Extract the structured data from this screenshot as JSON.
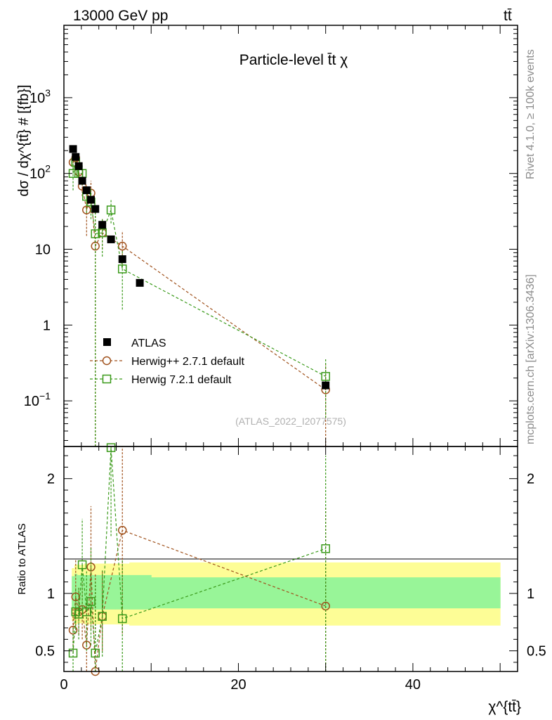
{
  "header": {
    "energy_label": "13000 GeV pp",
    "process_label": "tt̄"
  },
  "side_labels": {
    "rivet": "Rivet 4.1.0, ≥ 100k events",
    "mcplots": "mcplots.cern.ch [arXiv:1306.3436]"
  },
  "chart_data": [
    {
      "type": "scatter",
      "title": "Particle-level t̄t χ",
      "ylabel": "dσ / dχ^{tt̄} # [{fb}]",
      "yscale": "log",
      "ylim": [
        0.025,
        9000
      ],
      "xlim": [
        0,
        52
      ],
      "y_ticks": [
        {
          "value": 1000,
          "label": "10",
          "sup": "3"
        },
        {
          "value": 100,
          "label": "10",
          "sup": "2"
        },
        {
          "value": 10,
          "label": "10",
          "sup": ""
        },
        {
          "value": 1,
          "label": "1",
          "sup": ""
        },
        {
          "value": 0.1,
          "label": "10",
          "sup": "−1"
        }
      ],
      "watermark": "(ATLAS_2022_I2077575)",
      "legend": [
        {
          "label": "ATLAS",
          "color": "#000000",
          "marker": "square-filled"
        },
        {
          "label": "Herwig++ 2.7.1 default",
          "color": "#a0521d",
          "marker": "circle-open"
        },
        {
          "label": "Herwig 7.2.1 default",
          "color": "#3a9a1a",
          "marker": "square-open"
        }
      ],
      "series": [
        {
          "name": "ATLAS",
          "x": [
            1.05,
            1.35,
            1.7,
            2.1,
            2.6,
            3.1,
            3.6,
            4.4,
            5.4,
            6.7,
            8.7,
            30
          ],
          "y": [
            210,
            165,
            125,
            80,
            60,
            45,
            34,
            21,
            13.5,
            7.4,
            3.6,
            0.16
          ]
        },
        {
          "name": "Herwig++ 2.7.1 default",
          "x": [
            1.05,
            1.35,
            1.7,
            2.1,
            2.6,
            3.1,
            3.6,
            4.4,
            6.7,
            30
          ],
          "y": [
            140,
            160,
            105,
            68,
            33,
            55,
            11,
            16.5,
            11,
            0.14
          ],
          "err": [
            [
              110,
              180
            ],
            [
              125,
              200
            ],
            [
              80,
              130
            ],
            [
              50,
              88
            ],
            [
              15,
              55
            ],
            [
              30,
              80
            ],
            [
              0.001,
              40
            ],
            [
              10,
              25
            ],
            [
              6,
              17.5
            ],
            [
              0.001,
              0.3
            ]
          ]
        },
        {
          "name": "Herwig 7.2.1 default",
          "x": [
            1.05,
            1.35,
            1.7,
            2.1,
            2.6,
            3.1,
            3.6,
            4.4,
            5.4,
            6.7,
            30
          ],
          "y": [
            100,
            140,
            100,
            100,
            50,
            42,
            16,
            16.5,
            33,
            5.5,
            0.21
          ],
          "err": [
            [
              60,
              145
            ],
            [
              110,
              175
            ],
            [
              75,
              130
            ],
            [
              70,
              130
            ],
            [
              30,
              70
            ],
            [
              25,
              62
            ],
            [
              0.001,
              35
            ],
            [
              8,
              25
            ],
            [
              22,
              45
            ],
            [
              1.6,
              9.5
            ],
            [
              0.06,
              0.36
            ]
          ]
        }
      ]
    },
    {
      "type": "scatter",
      "ylabel": "Ratio to ATLAS",
      "xlabel": "χ^{tt̄}",
      "ylim": [
        0.32,
        2.28
      ],
      "xlim": [
        0,
        52
      ],
      "y_ticks": [
        {
          "value": 2,
          "label": "2"
        },
        {
          "value": 1,
          "label": "1"
        },
        {
          "value": 0.5,
          "label": "0.5"
        }
      ],
      "x_ticks": [
        {
          "value": 0,
          "label": "0"
        },
        {
          "value": 20,
          "label": "20"
        },
        {
          "value": 40,
          "label": "40"
        }
      ],
      "bands": {
        "x_edges": [
          0.9,
          1.2,
          1.5,
          1.9,
          2.3,
          2.9,
          3.3,
          3.9,
          4.9,
          5.9,
          7.5,
          10,
          50
        ],
        "inner": [
          [
            0.87,
            1.15
          ],
          [
            0.85,
            1.17
          ],
          [
            0.86,
            1.16
          ],
          [
            0.86,
            1.16
          ],
          [
            0.86,
            1.16
          ],
          [
            0.86,
            1.16
          ],
          [
            0.86,
            1.16
          ],
          [
            0.86,
            1.16
          ],
          [
            0.86,
            1.16
          ],
          [
            0.86,
            1.16
          ],
          [
            0.86,
            1.16
          ],
          [
            0.87,
            1.14
          ]
        ],
        "outer": [
          [
            0.76,
            1.22
          ],
          [
            0.73,
            1.25
          ],
          [
            0.74,
            1.25
          ],
          [
            0.74,
            1.25
          ],
          [
            0.73,
            1.26
          ],
          [
            0.73,
            1.26
          ],
          [
            0.73,
            1.26
          ],
          [
            0.73,
            1.26
          ],
          [
            0.73,
            1.26
          ],
          [
            0.73,
            1.26
          ],
          [
            0.72,
            1.27
          ],
          [
            0.72,
            1.27
          ]
        ]
      },
      "series": [
        {
          "name": "Herwig++ 2.7.1 default",
          "x": [
            1.05,
            1.35,
            1.7,
            2.1,
            2.6,
            3.1,
            3.6,
            4.4,
            6.7,
            30
          ],
          "y": [
            0.68,
            0.97,
            0.84,
            0.86,
            0.55,
            1.23,
            0.32,
            0.8,
            1.55,
            0.89
          ],
          "err": [
            [
              0.48,
              0.88
            ],
            [
              0.72,
              1.3
            ],
            [
              0.64,
              1.05
            ],
            [
              0.6,
              1.1
            ],
            [
              0.28,
              0.92
            ],
            [
              0.68,
              1.76
            ],
            [
              0.01,
              1.17
            ],
            [
              0.5,
              1.2
            ],
            [
              0.65,
              2.28
            ],
            [
              0.01,
              1.75
            ]
          ]
        },
        {
          "name": "Herwig 7.2.1 default",
          "x": [
            1.05,
            1.35,
            1.7,
            2.1,
            2.6,
            3.1,
            3.6,
            4.4,
            5.4,
            6.7,
            30
          ],
          "y": [
            0.48,
            0.84,
            0.82,
            1.25,
            0.84,
            0.93,
            0.48,
            0.8,
            2.27,
            0.78,
            1.39
          ],
          "err": [
            [
              0.3,
              0.7
            ],
            [
              0.65,
              1.05
            ],
            [
              0.6,
              1.05
            ],
            [
              0.85,
              1.65
            ],
            [
              0.5,
              1.2
            ],
            [
              0.55,
              1.4
            ],
            [
              0.01,
              1.1
            ],
            [
              0.45,
              1.2
            ],
            [
              1.5,
              2.9
            ],
            [
              0.22,
              1.3
            ],
            [
              0.01,
              2.2
            ]
          ]
        }
      ]
    }
  ]
}
